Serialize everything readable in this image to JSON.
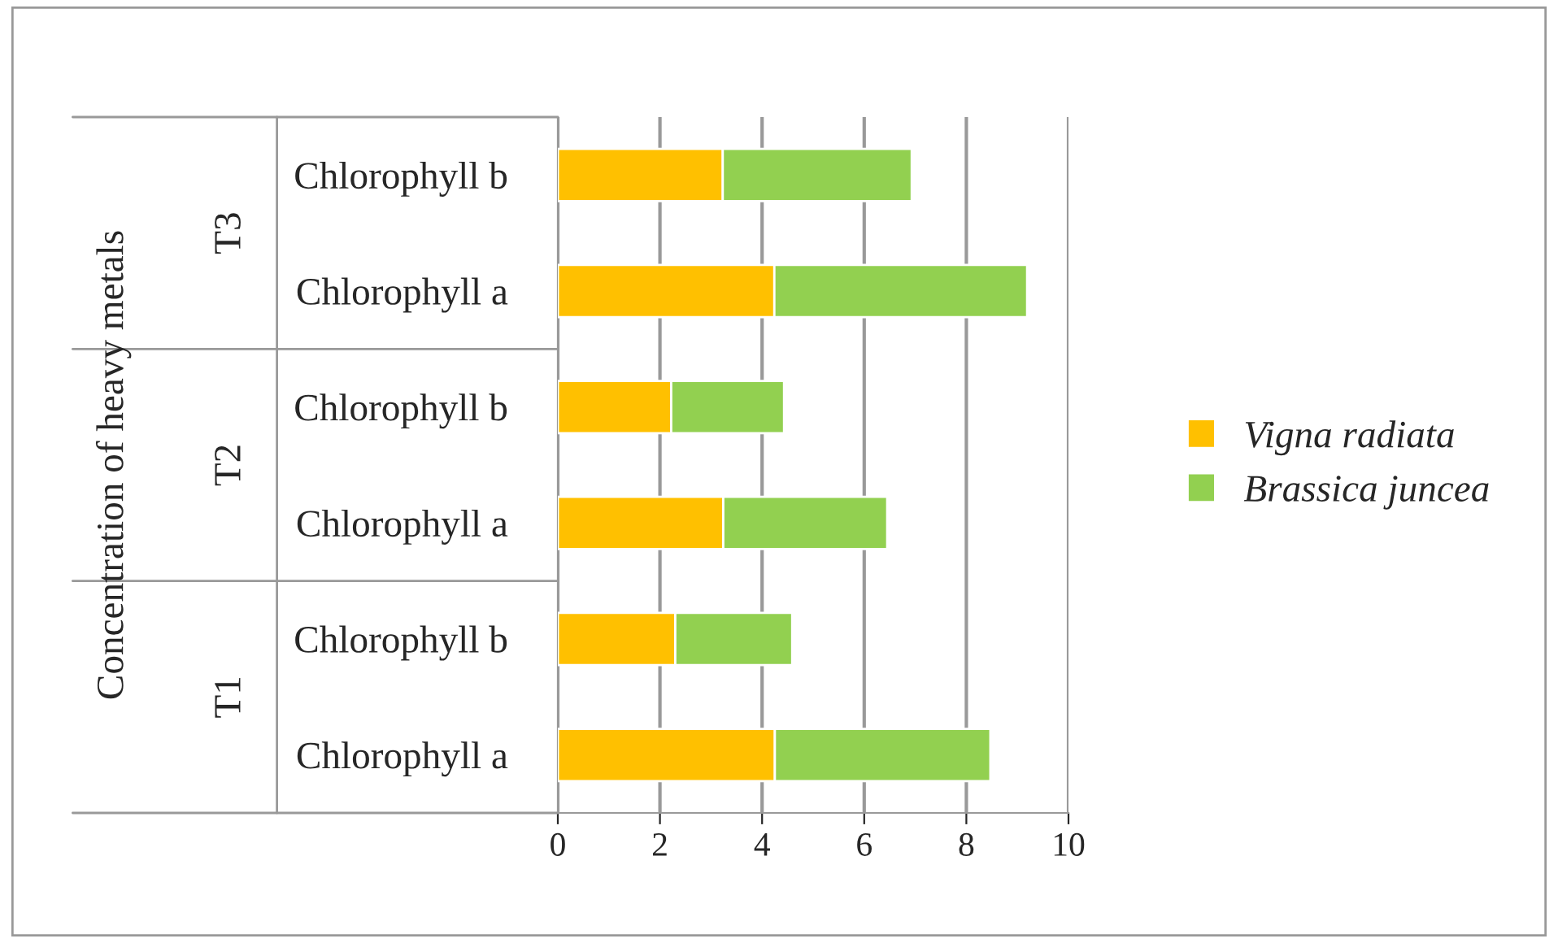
{
  "chart_data": {
    "type": "bar",
    "orientation": "horizontal",
    "stacked": true,
    "categories": [
      "Chlorophyll b",
      "Chlorophyll a",
      "Chlorophyll b",
      "Chlorophyll a",
      "Chlorophyll b",
      "Chlorophyll a"
    ],
    "annotations": [
      "T3",
      "T2",
      "T1"
    ],
    "ylabel": "Concentration of heavy metals",
    "series": [
      {
        "name": "Vigna radiata",
        "color": "#ffc000",
        "values": [
          3.23,
          4.24,
          2.22,
          3.24,
          2.3,
          4.25
        ]
      },
      {
        "name": "Brassica juncea",
        "color": "#92d050",
        "values": [
          3.7,
          4.95,
          2.21,
          3.21,
          2.29,
          4.22
        ]
      }
    ],
    "xlim": [
      0,
      10
    ],
    "xticks": [
      0,
      2,
      4,
      6,
      8,
      10
    ],
    "grid": "x",
    "legend": "right"
  }
}
